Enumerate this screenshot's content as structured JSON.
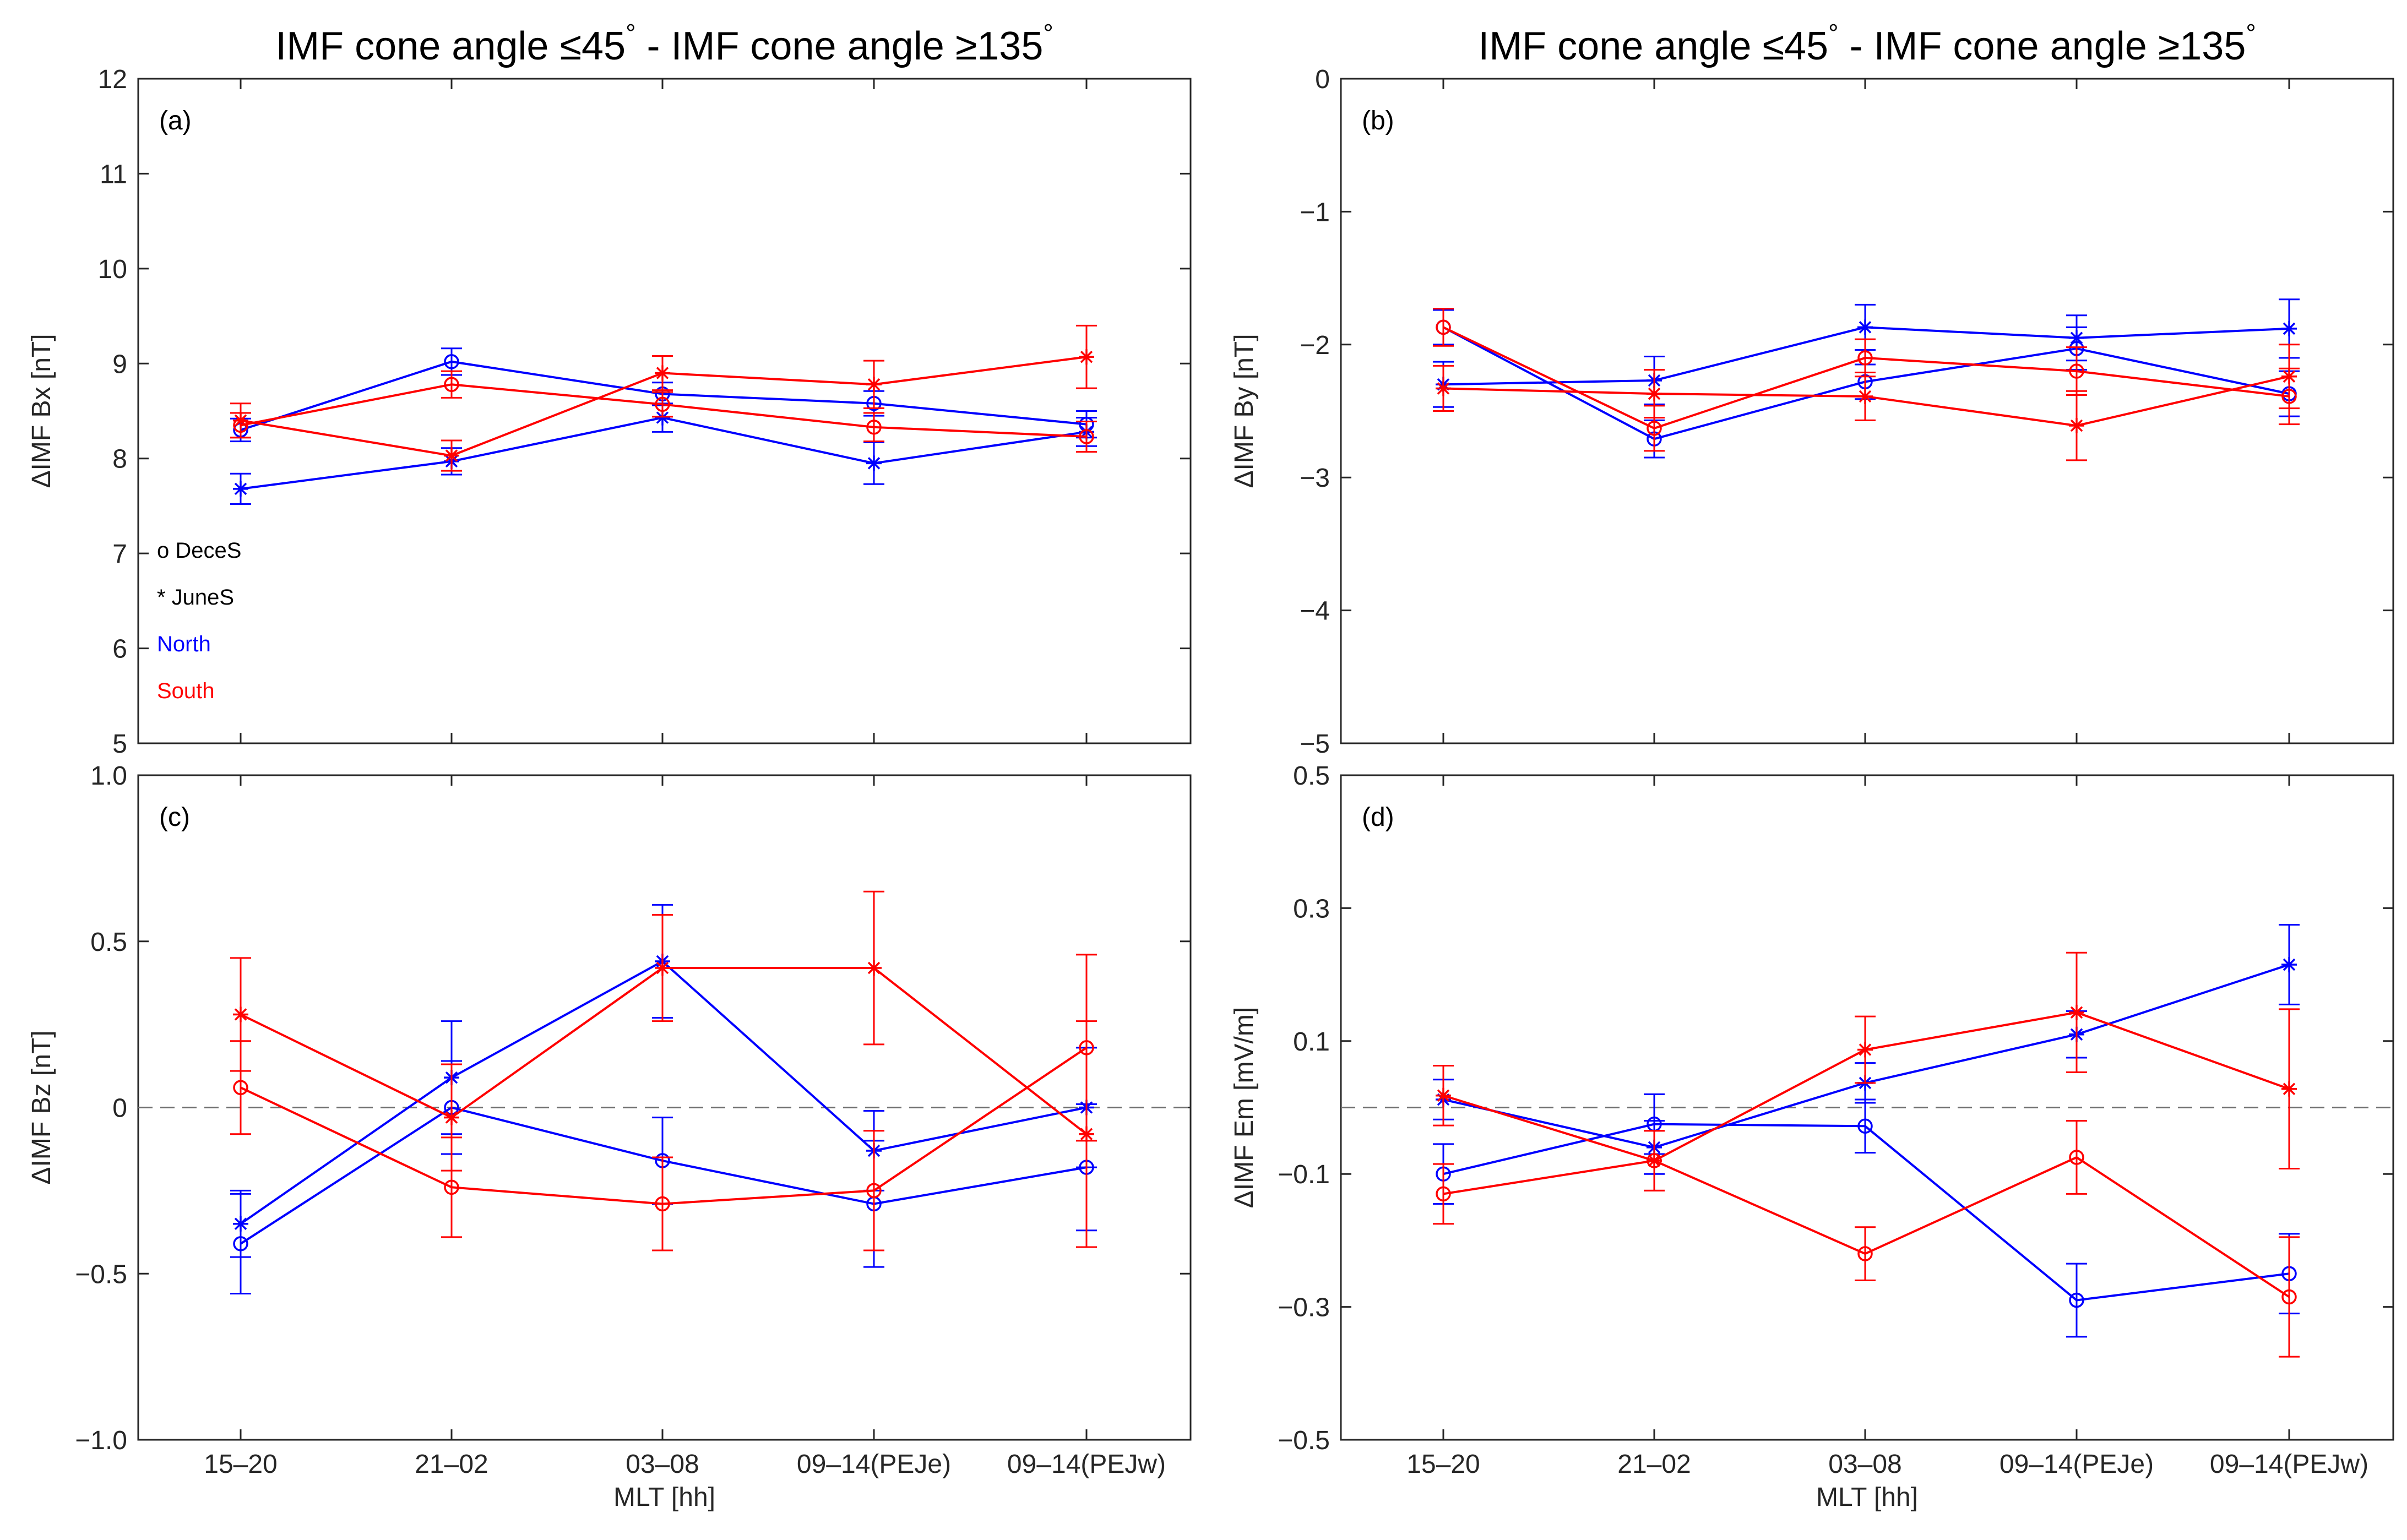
{
  "chart_data": [
    {
      "id": "a",
      "type": "line",
      "panel_label": "(a)",
      "title": "IMF cone angle ≤45° - IMF cone angle ≥135°",
      "title_parts": [
        "IMF cone angle ≤45",
        "°",
        " - IMF cone angle ≥135",
        "°"
      ],
      "ylabel": "ΔIMF Bx [nT]",
      "xlabel": "",
      "categories": [
        "15–20",
        "21–02",
        "03–08",
        "09–14(PEJe)",
        "09–14(PEJw)"
      ],
      "show_xticklabels": false,
      "ylim": [
        5,
        12
      ],
      "yticks": [
        5,
        6,
        7,
        8,
        9,
        10,
        11,
        12
      ],
      "ytick_labels": [
        "5",
        "6",
        "7",
        "8",
        "9",
        "10",
        "11",
        "12"
      ],
      "zero_line": false,
      "legend": {
        "placement": "bottom-left",
        "items": [
          {
            "text": "o DeceS",
            "color": "#000000"
          },
          {
            "text": "* JuneS",
            "color": "#000000"
          },
          {
            "text": "North",
            "color": "#0000ff"
          },
          {
            "text": "South",
            "color": "#ff0000"
          }
        ]
      },
      "series": [
        {
          "name": "North DeceS",
          "color": "#0000ff",
          "marker": "o",
          "values": [
            8.3,
            9.02,
            8.68,
            8.58,
            8.36
          ],
          "errors": [
            0.12,
            0.14,
            0.12,
            0.13,
            0.14
          ]
        },
        {
          "name": "North JuneS",
          "color": "#0000ff",
          "marker": "*",
          "values": [
            7.68,
            7.97,
            8.43,
            7.95,
            8.28
          ],
          "errors": [
            0.16,
            0.14,
            0.15,
            0.22,
            0.15
          ]
        },
        {
          "name": "South DeceS",
          "color": "#ff0000",
          "marker": "o",
          "values": [
            8.35,
            8.78,
            8.57,
            8.33,
            8.23
          ],
          "errors": [
            0.13,
            0.14,
            0.13,
            0.15,
            0.16
          ]
        },
        {
          "name": "South JuneS",
          "color": "#ff0000",
          "marker": "*",
          "values": [
            8.4,
            8.03,
            8.9,
            8.78,
            9.07
          ],
          "errors": [
            0.18,
            0.16,
            0.18,
            0.25,
            0.33
          ]
        }
      ]
    },
    {
      "id": "b",
      "type": "line",
      "panel_label": "(b)",
      "title": "IMF cone angle ≤45° - IMF cone angle ≥135°",
      "title_parts": [
        "IMF cone angle ≤45",
        "°",
        " - IMF cone angle ≥135",
        "°"
      ],
      "ylabel": "ΔIMF By [nT]",
      "xlabel": "",
      "categories": [
        "15–20",
        "21–02",
        "03–08",
        "09–14(PEJe)",
        "09–14(PEJw)"
      ],
      "show_xticklabels": false,
      "ylim": [
        -5,
        0
      ],
      "yticks": [
        -5,
        -4,
        -3,
        -2,
        -1,
        0
      ],
      "ytick_labels": [
        "−5",
        "−4",
        "−3",
        "−2",
        "−1",
        "0"
      ],
      "zero_line": false,
      "series": [
        {
          "name": "North DeceS",
          "color": "#0000ff",
          "marker": "o",
          "values": [
            -1.87,
            -2.71,
            -2.28,
            -2.03,
            -2.37
          ],
          "errors": [
            0.13,
            0.14,
            0.13,
            0.16,
            0.17
          ]
        },
        {
          "name": "North JuneS",
          "color": "#0000ff",
          "marker": "*",
          "values": [
            -2.3,
            -2.27,
            -1.87,
            -1.95,
            -1.88
          ],
          "errors": [
            0.17,
            0.18,
            0.17,
            0.17,
            0.22
          ]
        },
        {
          "name": "South DeceS",
          "color": "#ff0000",
          "marker": "o",
          "values": [
            -1.87,
            -2.63,
            -2.1,
            -2.2,
            -2.39
          ],
          "errors": [
            0.14,
            0.17,
            0.14,
            0.18,
            0.21
          ]
        },
        {
          "name": "South JuneS",
          "color": "#ff0000",
          "marker": "*",
          "values": [
            -2.33,
            -2.37,
            -2.39,
            -2.61,
            -2.24
          ],
          "errors": [
            0.17,
            0.18,
            0.18,
            0.26,
            0.24
          ]
        }
      ]
    },
    {
      "id": "c",
      "type": "line",
      "panel_label": "(c)",
      "title": "",
      "ylabel": "ΔIMF Bz [nT]",
      "xlabel": "MLT [hh]",
      "categories": [
        "15–20",
        "21–02",
        "03–08",
        "09–14(PEJe)",
        "09–14(PEJw)"
      ],
      "show_xticklabels": true,
      "ylim": [
        -1,
        1
      ],
      "yticks": [
        -1,
        -0.5,
        0,
        0.5,
        1
      ],
      "ytick_labels": [
        "−1.0",
        "−0.5",
        "0",
        "0.5",
        "1.0"
      ],
      "zero_line": true,
      "series": [
        {
          "name": "North DeceS",
          "color": "#0000ff",
          "marker": "o",
          "values": [
            -0.41,
            0.0,
            -0.16,
            -0.29,
            -0.18
          ],
          "errors": [
            0.15,
            0.14,
            0.13,
            0.19,
            0.19
          ]
        },
        {
          "name": "North JuneS",
          "color": "#0000ff",
          "marker": "*",
          "values": [
            -0.35,
            0.09,
            0.44,
            -0.13,
            0.0
          ],
          "errors": [
            0.1,
            0.17,
            0.17,
            0.12,
            0.18
          ]
        },
        {
          "name": "South DeceS",
          "color": "#ff0000",
          "marker": "o",
          "values": [
            0.06,
            -0.24,
            -0.29,
            -0.25,
            0.18
          ],
          "errors": [
            0.14,
            0.15,
            0.14,
            0.18,
            0.28
          ]
        },
        {
          "name": "South JuneS",
          "color": "#ff0000",
          "marker": "*",
          "values": [
            0.28,
            -0.03,
            0.42,
            0.42,
            -0.08
          ],
          "errors": [
            0.17,
            0.16,
            0.16,
            0.23,
            0.34
          ]
        }
      ]
    },
    {
      "id": "d",
      "type": "line",
      "panel_label": "(d)",
      "title": "",
      "ylabel": "ΔIMF Em [mV/m]",
      "xlabel": "MLT [hh]",
      "categories": [
        "15–20",
        "21–02",
        "03–08",
        "09–14(PEJe)",
        "09–14(PEJw)"
      ],
      "show_xticklabels": true,
      "ylim": [
        -0.5,
        0.5
      ],
      "yticks": [
        -0.5,
        -0.3,
        -0.1,
        0.1,
        0.3,
        0.5
      ],
      "ytick_labels": [
        "−0.5",
        "−0.3",
        "−0.1",
        "0.1",
        "0.3",
        "0.5"
      ],
      "zero_line": true,
      "series": [
        {
          "name": "North DeceS",
          "color": "#0000ff",
          "marker": "o",
          "values": [
            -0.1,
            -0.025,
            -0.028,
            -0.29,
            -0.25
          ],
          "errors": [
            0.045,
            0.045,
            0.04,
            0.055,
            0.06
          ]
        },
        {
          "name": "North JuneS",
          "color": "#0000ff",
          "marker": "*",
          "values": [
            0.012,
            -0.06,
            0.037,
            0.11,
            0.215
          ],
          "errors": [
            0.03,
            0.04,
            0.03,
            0.035,
            0.06
          ]
        },
        {
          "name": "South DeceS",
          "color": "#ff0000",
          "marker": "o",
          "values": [
            -0.13,
            -0.08,
            -0.22,
            -0.075,
            -0.285
          ],
          "errors": [
            0.045,
            0.045,
            0.04,
            0.055,
            0.09
          ]
        },
        {
          "name": "South JuneS",
          "color": "#ff0000",
          "marker": "*",
          "values": [
            0.018,
            -0.08,
            0.087,
            0.143,
            0.028
          ],
          "errors": [
            0.045,
            0.045,
            0.05,
            0.09,
            0.12
          ]
        }
      ]
    }
  ]
}
